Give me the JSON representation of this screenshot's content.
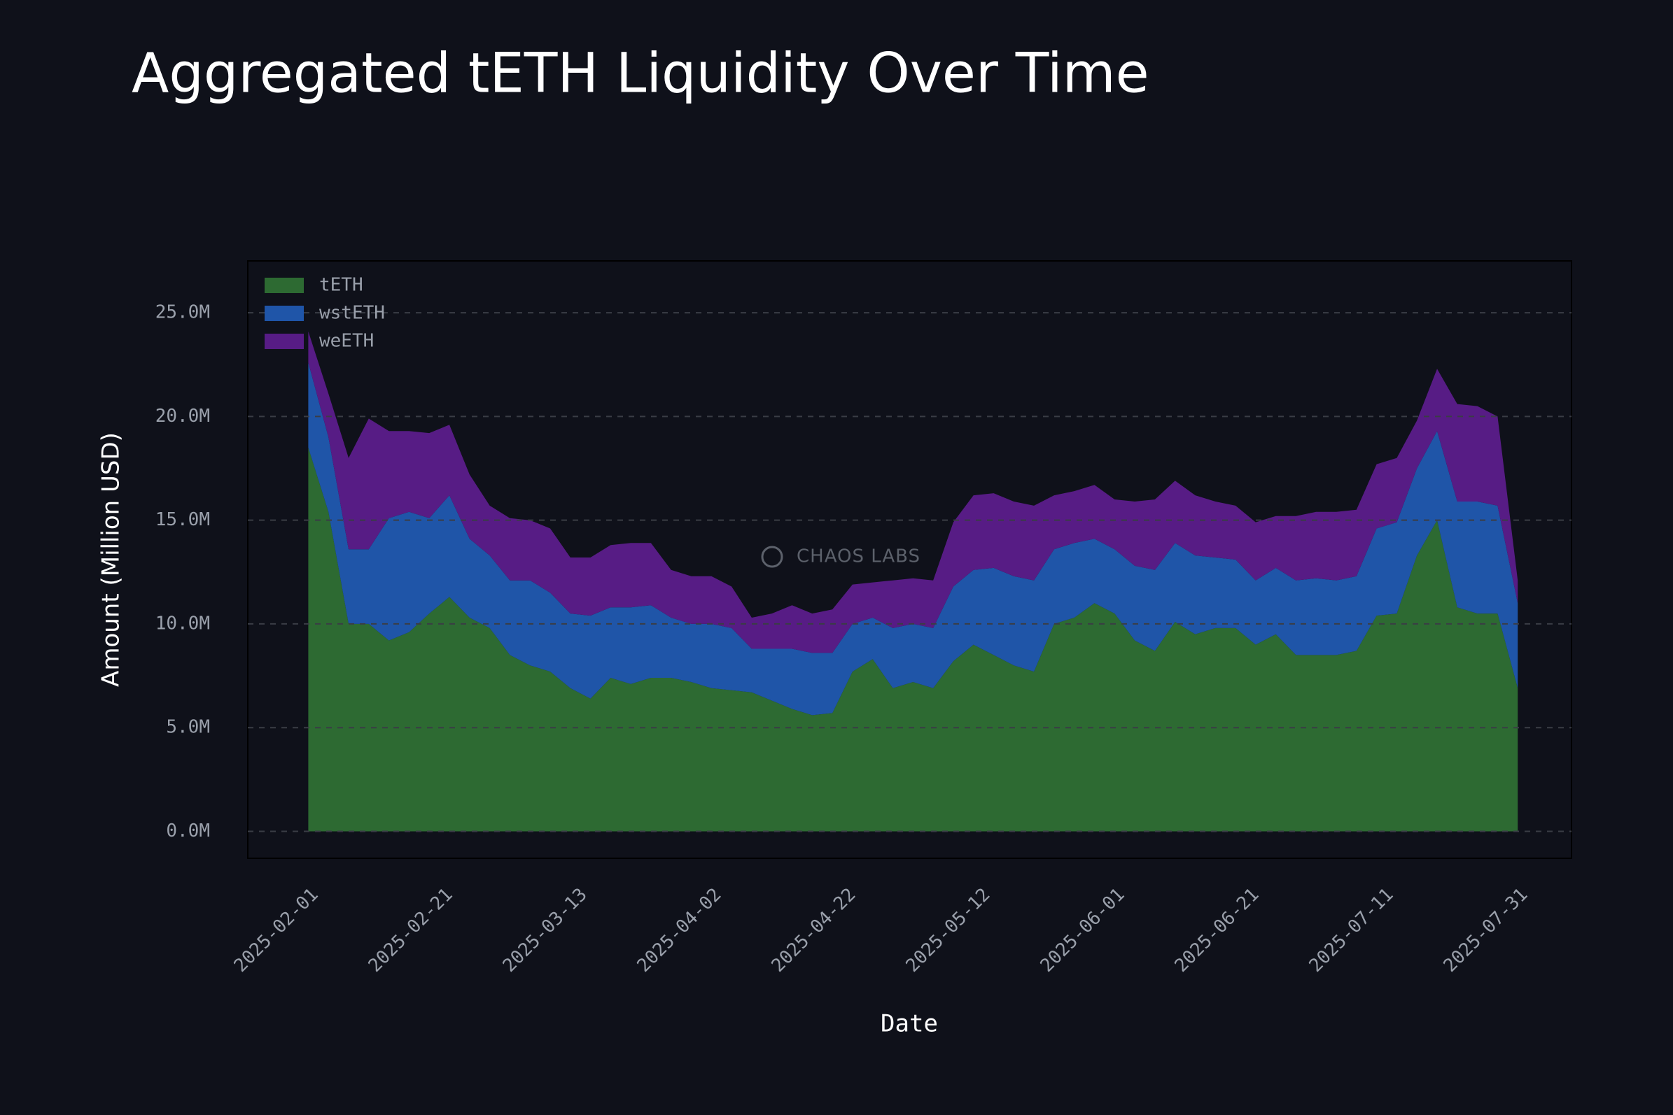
{
  "chart_data": {
    "type": "stacked_area",
    "title": "Aggregated tETH Liquidity Over Time",
    "xlabel": "Date",
    "ylabel": "Amount (Million USD)",
    "watermark": "CHAOS LABS",
    "legend": "upper left",
    "grid": true,
    "x": [
      "2025-02-01",
      "2025-02-04",
      "2025-02-07",
      "2025-02-10",
      "2025-02-13",
      "2025-02-16",
      "2025-02-19",
      "2025-02-22",
      "2025-02-25",
      "2025-02-28",
      "2025-03-03",
      "2025-03-06",
      "2025-03-09",
      "2025-03-12",
      "2025-03-15",
      "2025-03-18",
      "2025-03-21",
      "2025-03-24",
      "2025-03-27",
      "2025-03-30",
      "2025-04-02",
      "2025-04-05",
      "2025-04-08",
      "2025-04-11",
      "2025-04-14",
      "2025-04-17",
      "2025-04-20",
      "2025-04-23",
      "2025-04-26",
      "2025-04-29",
      "2025-05-02",
      "2025-05-05",
      "2025-05-08",
      "2025-05-11",
      "2025-05-14",
      "2025-05-17",
      "2025-05-20",
      "2025-05-23",
      "2025-05-26",
      "2025-05-29",
      "2025-06-01",
      "2025-06-04",
      "2025-06-07",
      "2025-06-10",
      "2025-06-13",
      "2025-06-16",
      "2025-06-19",
      "2025-06-22",
      "2025-06-25",
      "2025-06-28",
      "2025-07-01",
      "2025-07-04",
      "2025-07-07",
      "2025-07-10",
      "2025-07-13",
      "2025-07-16",
      "2025-07-19",
      "2025-07-22",
      "2025-07-25",
      "2025-07-28",
      "2025-07-31"
    ],
    "series": [
      {
        "name": "tETH",
        "color": "#2d6a32",
        "values": [
          18.5,
          15.4,
          10.0,
          10.0,
          9.2,
          9.6,
          10.5,
          11.3,
          10.3,
          9.8,
          8.5,
          8.0,
          7.7,
          6.9,
          6.4,
          7.4,
          7.1,
          7.4,
          7.4,
          7.2,
          6.9,
          6.8,
          6.7,
          6.3,
          5.9,
          5.6,
          5.7,
          7.7,
          8.3,
          6.9,
          7.2,
          6.9,
          8.2,
          9.0,
          8.5,
          8.0,
          7.7,
          10.0,
          10.3,
          11.0,
          10.5,
          9.2,
          8.7,
          10.1,
          9.5,
          9.8,
          9.8,
          9.0,
          9.5,
          8.5,
          8.5,
          8.5,
          8.7,
          10.4,
          10.5,
          13.3,
          15.0,
          10.8,
          10.5,
          10.5,
          6.9
        ]
      },
      {
        "name": "wstETH",
        "color": "#1f55a8",
        "values": [
          4.1,
          3.6,
          3.6,
          3.6,
          5.9,
          5.8,
          4.6,
          4.9,
          3.8,
          3.5,
          3.6,
          4.1,
          3.8,
          3.6,
          4.0,
          3.4,
          3.7,
          3.5,
          2.9,
          2.8,
          3.1,
          3.0,
          2.1,
          2.5,
          2.9,
          3.0,
          2.9,
          2.3,
          2.0,
          2.9,
          2.8,
          2.9,
          3.6,
          3.6,
          4.2,
          4.3,
          4.4,
          3.6,
          3.6,
          3.1,
          3.1,
          3.6,
          3.9,
          3.8,
          3.8,
          3.4,
          3.3,
          3.1,
          3.2,
          3.6,
          3.7,
          3.6,
          3.6,
          4.2,
          4.4,
          4.2,
          4.3,
          5.1,
          5.4,
          5.2,
          4.1
        ]
      },
      {
        "name": "weETH",
        "color": "#571c85",
        "values": [
          1.5,
          2.1,
          4.4,
          6.3,
          4.2,
          3.9,
          4.1,
          3.4,
          3.1,
          2.4,
          3.0,
          2.9,
          3.1,
          2.7,
          2.8,
          3.0,
          3.1,
          3.0,
          2.3,
          2.3,
          2.3,
          2.0,
          1.5,
          1.7,
          2.1,
          1.9,
          2.1,
          1.9,
          1.7,
          2.3,
          2.2,
          2.3,
          3.1,
          3.6,
          3.6,
          3.6,
          3.6,
          2.6,
          2.5,
          2.6,
          2.4,
          3.1,
          3.4,
          3.0,
          2.9,
          2.7,
          2.6,
          2.8,
          2.5,
          3.1,
          3.2,
          3.3,
          3.2,
          3.1,
          3.1,
          2.3,
          3.0,
          4.7,
          4.6,
          4.3,
          1.1
        ]
      }
    ],
    "xlim": [
      "2025-01-23",
      "2025-08-08"
    ],
    "xticks": [
      "2025-02-01",
      "2025-02-21",
      "2025-03-13",
      "2025-04-02",
      "2025-04-22",
      "2025-05-12",
      "2025-06-01",
      "2025-06-21",
      "2025-07-11",
      "2025-07-31"
    ],
    "ylim": [
      -1.3,
      27.5
    ],
    "yticks": [
      {
        "value": 0,
        "label": "0.0M"
      },
      {
        "value": 5,
        "label": "5.0M"
      },
      {
        "value": 10,
        "label": "10.0M"
      },
      {
        "value": 15,
        "label": "15.0M"
      },
      {
        "value": 20,
        "label": "20.0M"
      },
      {
        "value": 25,
        "label": "25.0M"
      }
    ]
  }
}
